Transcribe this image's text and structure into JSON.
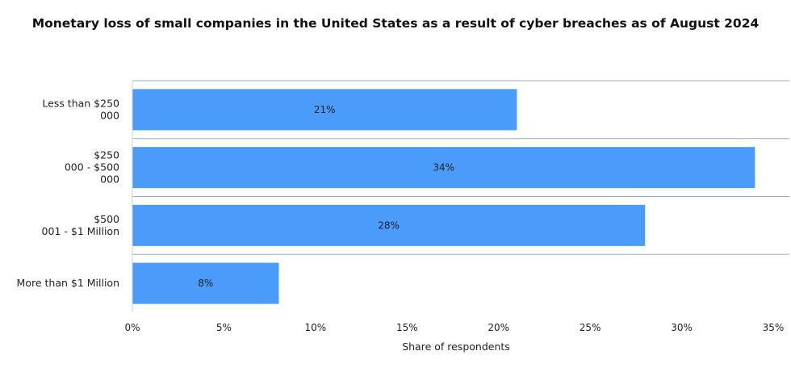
{
  "chart_data": {
    "type": "bar",
    "orientation": "horizontal",
    "title": "Monetary loss of small companies in the United States as a result of cyber breaches as of August 2024",
    "categories": [
      [
        "Less than $250",
        "000"
      ],
      [
        "$250",
        "000 - $500",
        "000"
      ],
      [
        "$500",
        "001 - $1 Million"
      ],
      [
        "More than $1 Million"
      ]
    ],
    "values": [
      21,
      34,
      28,
      8
    ],
    "data_labels": [
      "21%",
      "34%",
      "28%",
      "8%"
    ],
    "xlabel": "Share of respondents",
    "ylabel": "",
    "xlim": [
      0,
      35
    ],
    "xticks": [
      0,
      5,
      10,
      15,
      20,
      25,
      30,
      35
    ],
    "xtick_labels": [
      "0%",
      "5%",
      "10%",
      "15%",
      "20%",
      "25%",
      "30%",
      "35%"
    ],
    "bar_color": "#4b9bfb",
    "separator_color": "#9ab0c2",
    "grid": false,
    "legend": "none"
  }
}
